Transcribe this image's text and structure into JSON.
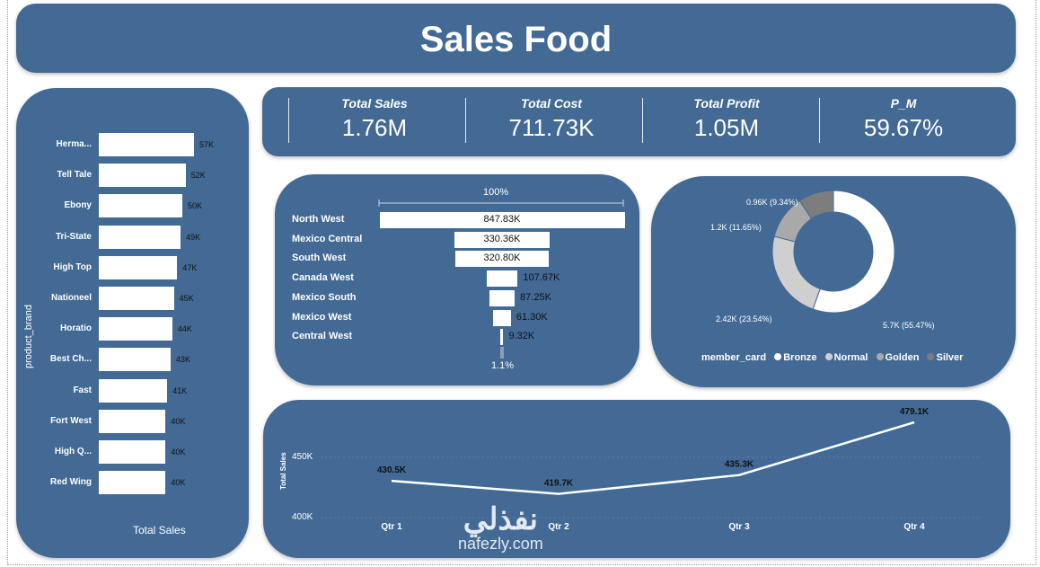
{
  "title": "Sales Food",
  "kpis": [
    {
      "label": "Total Sales",
      "value": "1.76M"
    },
    {
      "label": "Total Cost",
      "value": "711.73K"
    },
    {
      "label": "Total Profit",
      "value": "1.05M"
    },
    {
      "label": "P_M",
      "value": "59.67%"
    }
  ],
  "brand_chart": {
    "y_label": "product_brand",
    "x_label": "Total Sales",
    "bar_color": "#ffffff",
    "items": [
      {
        "name": "Herma...",
        "label": "57K",
        "value": 57
      },
      {
        "name": "Tell Tale",
        "label": "52K",
        "value": 52
      },
      {
        "name": "Ebony",
        "label": "50K",
        "value": 50
      },
      {
        "name": "Tri-State",
        "label": "49K",
        "value": 49
      },
      {
        "name": "High Top",
        "label": "47K",
        "value": 47
      },
      {
        "name": "Nationeel",
        "label": "45K",
        "value": 45
      },
      {
        "name": "Horatio",
        "label": "44K",
        "value": 44
      },
      {
        "name": "Best Ch...",
        "label": "43K",
        "value": 43
      },
      {
        "name": "Fast",
        "label": "41K",
        "value": 41
      },
      {
        "name": "Fort West",
        "label": "40K",
        "value": 40
      },
      {
        "name": "High Q...",
        "label": "40K",
        "value": 40
      },
      {
        "name": "Red Wing",
        "label": "40K",
        "value": 40
      }
    ]
  },
  "funnel": {
    "top_label": "100%",
    "bottom_label": "1.1%",
    "items": [
      {
        "name": "North West",
        "label": "847.83K",
        "value": 847.83
      },
      {
        "name": "Mexico Central",
        "label": "330.36K",
        "value": 330.36
      },
      {
        "name": "South West",
        "label": "320.80K",
        "value": 320.8
      },
      {
        "name": "Canada West",
        "label": "107.67K",
        "value": 107.67
      },
      {
        "name": "Mexico South",
        "label": "87.25K",
        "value": 87.25
      },
      {
        "name": "Mexico West",
        "label": "61.30K",
        "value": 61.3
      },
      {
        "name": "Central West",
        "label": "9.32K",
        "value": 9.32
      }
    ]
  },
  "donut": {
    "legend_title": "member_card",
    "slices": [
      {
        "name": "Bronze",
        "label": "5.7K (55.47%)",
        "value": 55.47,
        "color": "#ffffff"
      },
      {
        "name": "Normal",
        "label": "2.42K (23.54%)",
        "value": 23.54,
        "color": "#cfcfcf"
      },
      {
        "name": "Golden",
        "label": "1.2K (11.65%)",
        "value": 11.65,
        "color": "#a9a9a9"
      },
      {
        "name": "Silver",
        "label": "0.96K (9.34%)",
        "value": 9.34,
        "color": "#7d7d7d"
      }
    ]
  },
  "line_chart": {
    "y_label": "Total Sales",
    "y_ticks": [
      "450K",
      "400K"
    ],
    "categories": [
      "Qtr 1",
      "Qtr 2",
      "Qtr 3",
      "Qtr 4"
    ],
    "values": [
      430.5,
      419.7,
      435.3,
      479.1
    ],
    "labels": [
      "430.5K",
      "419.7K",
      "435.3K",
      "479.1K"
    ],
    "ylim": [
      400,
      480
    ]
  },
  "watermark": {
    "text": "نفذلي",
    "sub": "nafezly.com"
  }
}
